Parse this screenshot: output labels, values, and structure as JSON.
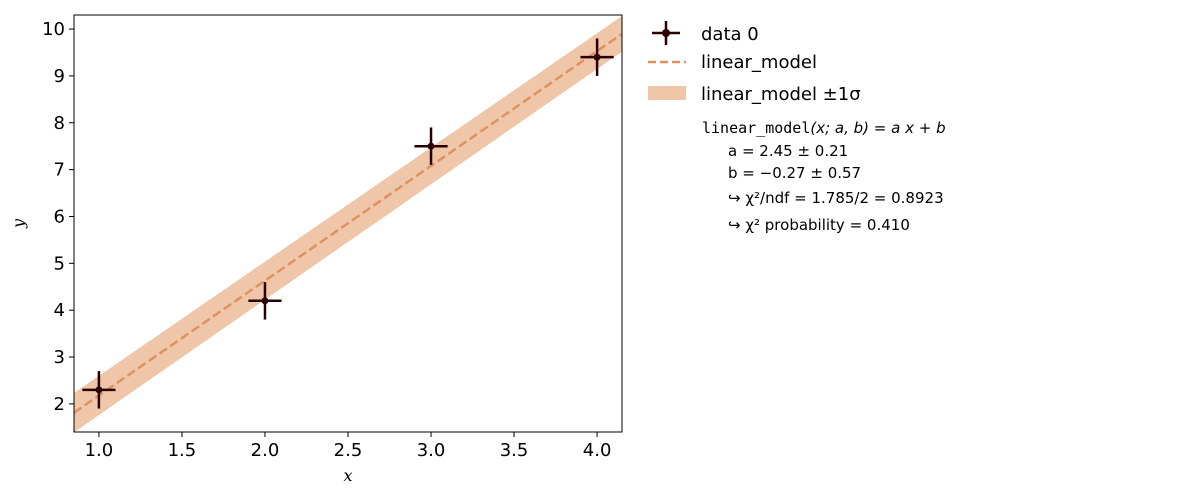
{
  "colors": {
    "data": "#2a0000",
    "model_line": "#e0915e",
    "band": "#f0c6a9",
    "axis": "#000000"
  },
  "chart_data": {
    "type": "scatter",
    "xlabel": "x",
    "ylabel": "y",
    "xlim": [
      0.85,
      4.15
    ],
    "ylim": [
      1.4,
      10.3
    ],
    "xticks": [
      "1.0",
      "1.5",
      "2.0",
      "2.5",
      "3.0",
      "3.5",
      "4.0"
    ],
    "yticks": [
      "2",
      "3",
      "4",
      "5",
      "6",
      "7",
      "8",
      "9",
      "10"
    ],
    "grid": false,
    "legend_placement": "outside right",
    "series": [
      {
        "name": "data 0",
        "x": [
          1.0,
          2.0,
          3.0,
          4.0
        ],
        "y": [
          2.3,
          4.2,
          7.5,
          9.4
        ],
        "xerr": [
          0.1,
          0.1,
          0.1,
          0.1
        ],
        "yerr": [
          0.4,
          0.4,
          0.4,
          0.4
        ]
      },
      {
        "name": "linear_model",
        "model": "linear",
        "a": 2.45,
        "b": -0.27,
        "band_sigma_at_xmin": 0.42,
        "band_sigma_at_xmax": 0.38
      }
    ],
    "legend": {
      "data_label": "data 0",
      "model_label": "linear_model",
      "band_label": "linear_model ±1σ"
    },
    "fit_info": {
      "formula_name": "linear_model",
      "formula_rest": "(x; a, b) = a x + b",
      "param_a": "a =  2.45 ± 0.21",
      "param_b": "b =  −0.27 ± 0.57",
      "chi2_ndf": "↪ χ²/ndf = 1.785/2 = 0.8923",
      "chi2_prob": "↪ χ² probability = 0.410"
    }
  }
}
